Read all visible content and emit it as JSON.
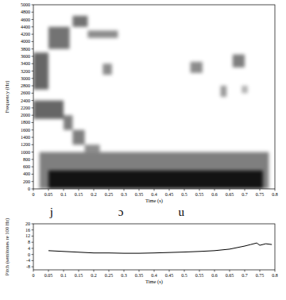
{
  "chart_data": [
    {
      "type": "heatmap",
      "x_label": "Time (s)",
      "y_label": "Frequency (Hz)",
      "xlim": [
        0,
        0.8
      ],
      "xticks": [
        0,
        0.05,
        0.1,
        0.15,
        0.2,
        0.25,
        0.3,
        0.35,
        0.4,
        0.45,
        0.5,
        0.55,
        0.6,
        0.65,
        0.7,
        0.75,
        0.8
      ],
      "ylim": [
        0,
        5000
      ],
      "yticks": [
        0,
        200,
        400,
        600,
        800,
        1000,
        1200,
        1400,
        1600,
        1800,
        2000,
        2200,
        2400,
        2600,
        2800,
        3000,
        3200,
        3400,
        3600,
        3800,
        4000,
        4200,
        4400,
        4600,
        4800,
        5000
      ],
      "color": "#000000",
      "cells": [
        {
          "x": [
            0.02,
            0.78
          ],
          "y": [
            0,
            1000
          ],
          "value": 0.5
        },
        {
          "x": [
            0.05,
            0.76
          ],
          "y": [
            0,
            500
          ],
          "value": 0.85
        },
        {
          "x": [
            0.0,
            0.05
          ],
          "y": [
            2700,
            3700
          ],
          "value": 0.6
        },
        {
          "x": [
            0.0,
            0.1
          ],
          "y": [
            1900,
            2400
          ],
          "value": 0.6
        },
        {
          "x": [
            0.05,
            0.12
          ],
          "y": [
            3800,
            4400
          ],
          "value": 0.55
        },
        {
          "x": [
            0.1,
            0.13
          ],
          "y": [
            1600,
            2000
          ],
          "value": 0.5
        },
        {
          "x": [
            0.13,
            0.17
          ],
          "y": [
            1200,
            1600
          ],
          "value": 0.5
        },
        {
          "x": [
            0.17,
            0.22
          ],
          "y": [
            1000,
            1200
          ],
          "value": 0.45
        },
        {
          "x": [
            0.13,
            0.18
          ],
          "y": [
            4400,
            4700
          ],
          "value": 0.55
        },
        {
          "x": [
            0.18,
            0.28
          ],
          "y": [
            4100,
            4300
          ],
          "value": 0.45
        },
        {
          "x": [
            0.23,
            0.26
          ],
          "y": [
            3100,
            3400
          ],
          "value": 0.45
        },
        {
          "x": [
            0.52,
            0.56
          ],
          "y": [
            3150,
            3450
          ],
          "value": 0.45
        },
        {
          "x": [
            0.62,
            0.64
          ],
          "y": [
            2500,
            2800
          ],
          "value": 0.4
        },
        {
          "x": [
            0.66,
            0.7
          ],
          "y": [
            3300,
            3650
          ],
          "value": 0.5
        },
        {
          "x": [
            0.69,
            0.71
          ],
          "y": [
            2600,
            2800
          ],
          "value": 0.3
        }
      ],
      "annotations": [
        {
          "text": "j",
          "x": 0.06
        },
        {
          "text": "ɔ",
          "x": 0.29
        },
        {
          "text": "u",
          "x": 0.49
        }
      ]
    },
    {
      "type": "line",
      "x_label": "Time (s)",
      "y_label": "Pitch (semitones re 100 Hz)",
      "xlim": [
        0,
        0.8
      ],
      "xticks": [
        0,
        0.05,
        0.1,
        0.15,
        0.2,
        0.25,
        0.3,
        0.35,
        0.4,
        0.45,
        0.5,
        0.55,
        0.6,
        0.65,
        0.7,
        0.75,
        0.8
      ],
      "ylim": [
        -10,
        20
      ],
      "yticks": [
        -8,
        -4,
        0,
        4,
        8,
        12,
        16,
        20
      ],
      "color": "#000000",
      "x": [
        0.05,
        0.1,
        0.15,
        0.2,
        0.25,
        0.3,
        0.35,
        0.4,
        0.45,
        0.5,
        0.55,
        0.6,
        0.65,
        0.7,
        0.72,
        0.74,
        0.75,
        0.77,
        0.79
      ],
      "values": [
        2.5,
        2,
        1.5,
        1,
        1,
        0.8,
        0.8,
        1,
        1.3,
        1.6,
        2,
        2.5,
        3.5,
        5.5,
        6.5,
        7.5,
        6,
        7,
        6.5
      ]
    }
  ]
}
